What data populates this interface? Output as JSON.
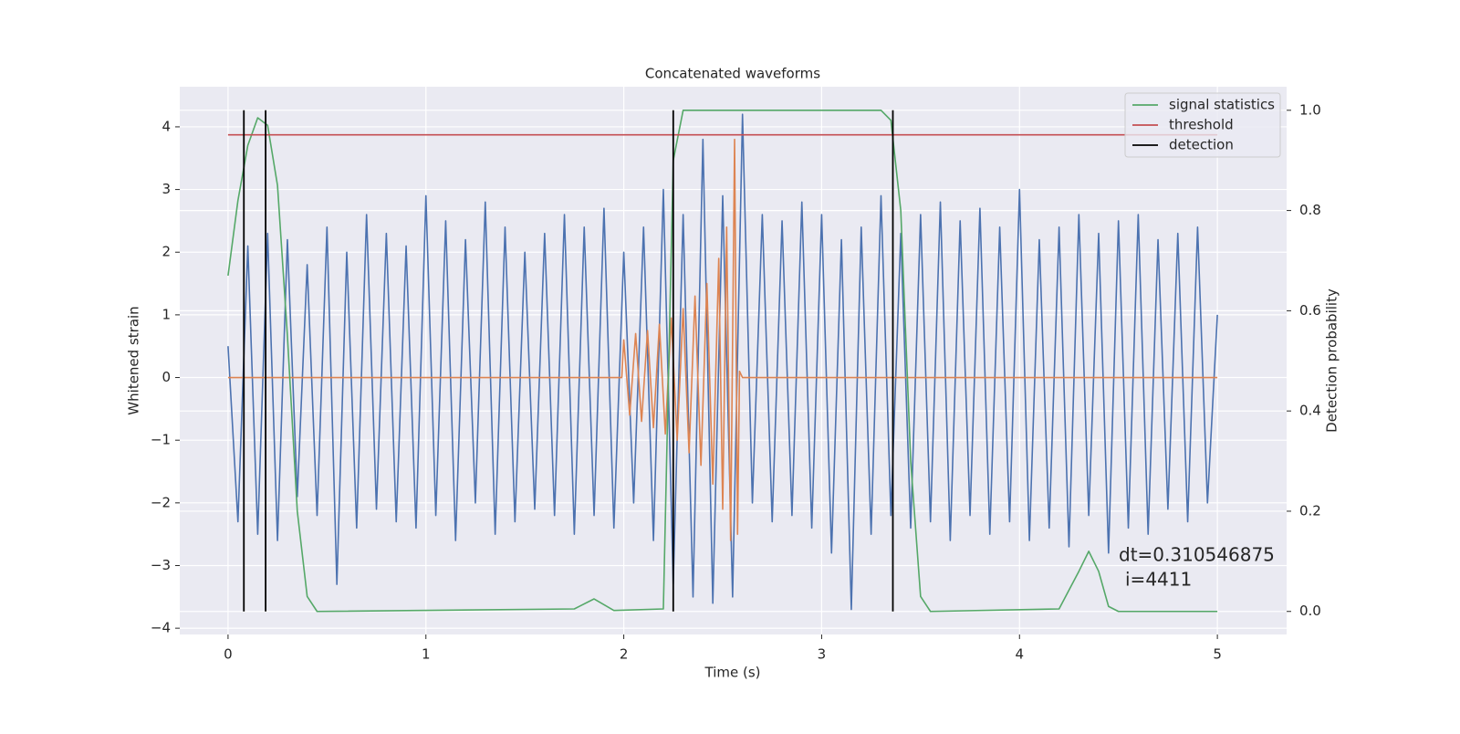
{
  "chart_data": {
    "type": "line",
    "title": "Concatenated waveforms",
    "xlabel": "Time (s)",
    "ylabel": "Whitened strain",
    "y2label": "Detection probability",
    "xlim": [
      -0.244,
      5.35
    ],
    "ylim": [
      -4.1,
      4.64
    ],
    "y2lim": [
      -0.046,
      1.047
    ],
    "xticks": [
      0,
      1,
      2,
      3,
      4,
      5
    ],
    "yticks": [
      {
        "value": -4,
        "label": "−4"
      },
      {
        "value": -3,
        "label": "−3"
      },
      {
        "value": -2,
        "label": "−2"
      },
      {
        "value": -1,
        "label": "−1"
      },
      0,
      1,
      2,
      3,
      4
    ],
    "y2ticks": [
      {
        "value": 0,
        "label": "0.0"
      },
      0.2,
      0.4,
      0.6,
      0.8,
      {
        "value": 1,
        "label": "1.0"
      }
    ],
    "grid": true,
    "legend": "upper right",
    "series": [
      {
        "color": "#4c72b0",
        "x": [
          0,
          0.05,
          0.1,
          0.15,
          0.2,
          0.25,
          0.3,
          0.35,
          0.4,
          0.45,
          0.5,
          0.55,
          0.6,
          0.65,
          0.7,
          0.75,
          0.8,
          0.85,
          0.9,
          0.95,
          1.0,
          1.05,
          1.1,
          1.15,
          1.2,
          1.25,
          1.3,
          1.35,
          1.4,
          1.45,
          1.5,
          1.55,
          1.6,
          1.65,
          1.7,
          1.75,
          1.8,
          1.85,
          1.9,
          1.95,
          2.0,
          2.05,
          2.1,
          2.15,
          2.2,
          2.25,
          2.3,
          2.35,
          2.4,
          2.45,
          2.5,
          2.55,
          2.6,
          2.65,
          2.7,
          2.75,
          2.8,
          2.85,
          2.9,
          2.95,
          3.0,
          3.05,
          3.1,
          3.15,
          3.2,
          3.25,
          3.3,
          3.35,
          3.4,
          3.45,
          3.5,
          3.55,
          3.6,
          3.65,
          3.7,
          3.75,
          3.8,
          3.85,
          3.9,
          3.95,
          4.0,
          4.05,
          4.1,
          4.15,
          4.2,
          4.25,
          4.3,
          4.35,
          4.4,
          4.45,
          4.5,
          4.55,
          4.6,
          4.65,
          4.7,
          4.75,
          4.8,
          4.85,
          4.9,
          4.95,
          5.0
        ],
        "values": [
          0.5,
          -2.3,
          2.1,
          -2.5,
          2.3,
          -2.6,
          2.2,
          -1.9,
          1.8,
          -2.2,
          2.4,
          -3.3,
          2.0,
          -2.4,
          2.6,
          -2.1,
          2.3,
          -2.3,
          2.1,
          -2.4,
          2.9,
          -2.2,
          2.5,
          -2.6,
          2.2,
          -2.0,
          2.8,
          -2.5,
          2.4,
          -2.3,
          2.0,
          -2.1,
          2.3,
          -2.2,
          2.6,
          -2.5,
          2.4,
          -2.2,
          2.7,
          -2.4,
          2.0,
          -2.0,
          2.4,
          -2.6,
          3.0,
          -3.3,
          2.6,
          -3.5,
          3.8,
          -3.6,
          2.9,
          -3.5,
          4.2,
          -2.0,
          2.6,
          -2.3,
          2.5,
          -2.2,
          2.8,
          -2.4,
          2.6,
          -2.8,
          2.2,
          -3.7,
          2.4,
          -2.5,
          2.9,
          -2.2,
          2.3,
          -2.4,
          2.6,
          -2.3,
          2.8,
          -2.6,
          2.5,
          -2.2,
          2.7,
          -2.5,
          2.4,
          -2.3,
          3.0,
          -2.6,
          2.2,
          -2.4,
          2.4,
          -2.7,
          2.6,
          -2.2,
          2.3,
          -2.8,
          2.5,
          -2.4,
          2.6,
          -2.5,
          2.2,
          -2.1,
          2.3,
          -2.3,
          2.4,
          -2.0,
          1.0
        ]
      },
      {
        "color": "#dd8452",
        "x": [
          0,
          1.99,
          2.0,
          2.03,
          2.06,
          2.09,
          2.12,
          2.15,
          2.18,
          2.21,
          2.24,
          2.27,
          2.3,
          2.33,
          2.36,
          2.39,
          2.42,
          2.45,
          2.48,
          2.5,
          2.52,
          2.54,
          2.56,
          2.575,
          2.585,
          2.6,
          5.0
        ],
        "values": [
          0,
          0,
          0.6,
          -0.6,
          0.7,
          -0.7,
          0.75,
          -0.8,
          0.85,
          -0.9,
          0.95,
          -1.0,
          1.1,
          -1.2,
          1.3,
          -1.4,
          1.5,
          -1.7,
          1.9,
          -2.1,
          2.4,
          -2.6,
          3.8,
          -2.5,
          0.1,
          0,
          0
        ]
      },
      {
        "name": "signal statistics",
        "color": "#55a868",
        "axis": "y2",
        "x": [
          0,
          0.05,
          0.1,
          0.15,
          0.2,
          0.25,
          0.3,
          0.35,
          0.4,
          0.45,
          1.75,
          1.85,
          1.95,
          2.2,
          2.25,
          2.3,
          3.3,
          3.35,
          3.4,
          3.45,
          3.5,
          3.55,
          4.2,
          4.3,
          4.35,
          4.4,
          4.45,
          4.5,
          5.0
        ],
        "values": [
          0.67,
          0.82,
          0.93,
          0.985,
          0.97,
          0.85,
          0.55,
          0.2,
          0.03,
          0.0,
          0.005,
          0.025,
          0.002,
          0.005,
          0.9,
          1.0,
          1.0,
          0.98,
          0.8,
          0.3,
          0.03,
          0.0,
          0.005,
          0.08,
          0.12,
          0.08,
          0.01,
          0.0,
          0.0
        ]
      },
      {
        "name": "threshold",
        "color": "#c44e52",
        "axis": "y2",
        "x": [
          0,
          5
        ],
        "values": [
          0.951,
          0.951
        ]
      }
    ],
    "detections": {
      "name": "detection",
      "color": "#000000",
      "x": [
        0.08,
        0.19,
        2.25,
        3.36
      ],
      "y_range": [
        0,
        1
      ]
    },
    "annotation": [
      "dt=0.310546875",
      "i=4411"
    ]
  }
}
